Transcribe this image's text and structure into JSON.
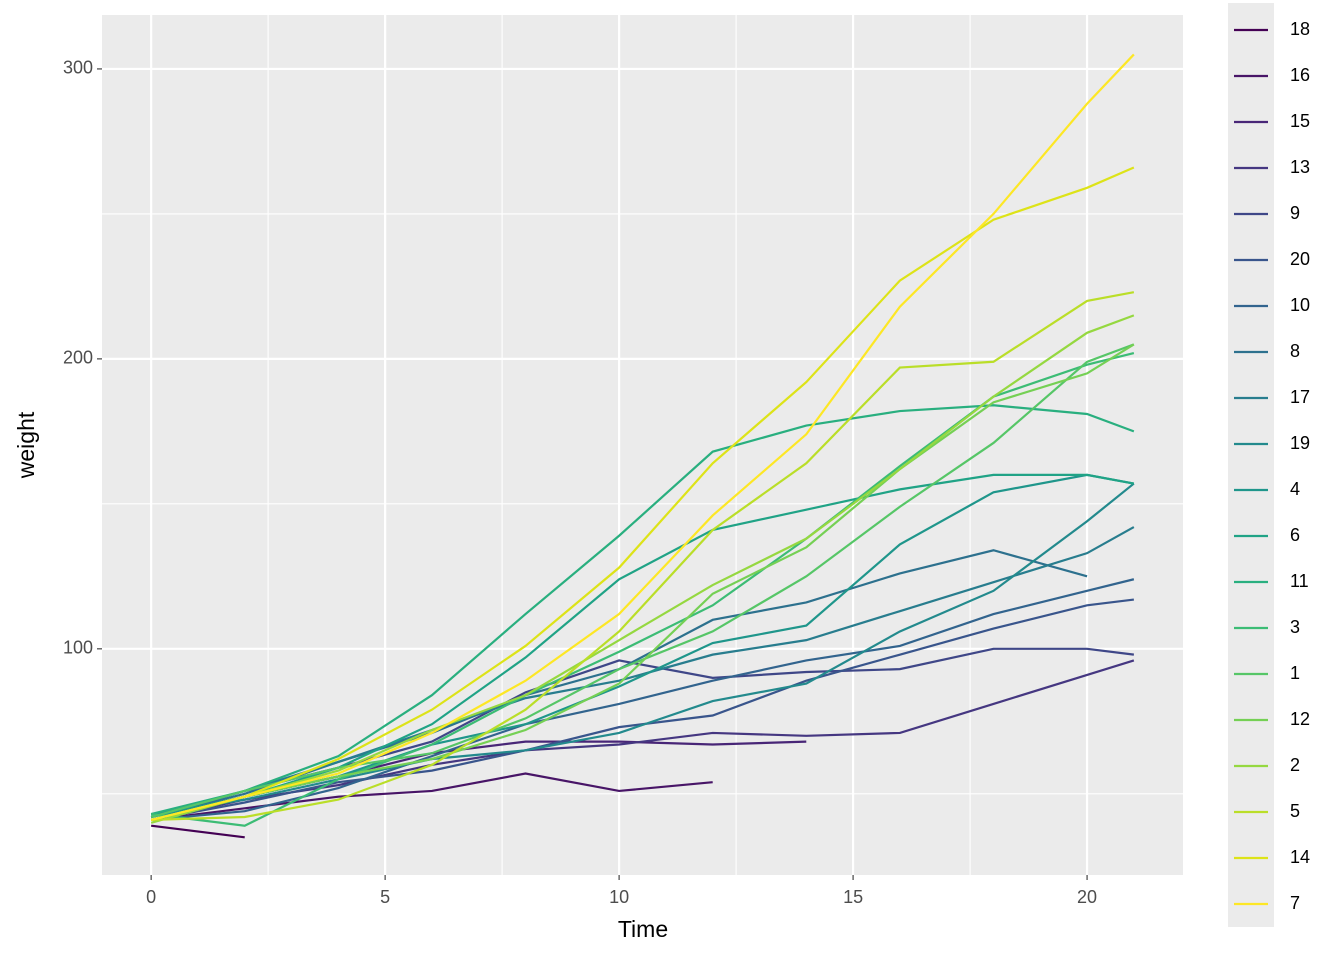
{
  "chart_data": {
    "type": "line",
    "x_label": "Time",
    "y_label": "weight",
    "xlim": [
      -1.05,
      22.05
    ],
    "ylim": [
      22,
      318.6
    ],
    "xticks": [
      0,
      5,
      10,
      15,
      20
    ],
    "yticks": [
      100,
      200,
      300
    ],
    "grid": true,
    "legend": "right",
    "series": [
      {
        "name": "18",
        "color": "#440154",
        "x": [
          0,
          2
        ],
        "values": [
          39,
          35
        ]
      },
      {
        "name": "16",
        "color": "#481567",
        "x": [
          0,
          2,
          4,
          6,
          8,
          10,
          12
        ],
        "values": [
          41,
          45,
          49,
          51,
          57,
          51,
          54
        ]
      },
      {
        "name": "15",
        "color": "#482677",
        "x": [
          0,
          2,
          4,
          6,
          8,
          10,
          12,
          14
        ],
        "values": [
          41,
          49,
          56,
          64,
          68,
          68,
          67,
          68
        ]
      },
      {
        "name": "13",
        "color": "#453781",
        "x": [
          0,
          2,
          4,
          6,
          8,
          10,
          12,
          14,
          16,
          18,
          20,
          21
        ],
        "values": [
          41,
          48,
          53,
          60,
          65,
          67,
          71,
          70,
          71,
          81,
          91,
          96
        ]
      },
      {
        "name": "9",
        "color": "#3F4788",
        "x": [
          0,
          2,
          4,
          6,
          8,
          10,
          12,
          14,
          16,
          18,
          20,
          21
        ],
        "values": [
          42,
          51,
          59,
          68,
          85,
          96,
          90,
          92,
          93,
          100,
          100,
          98
        ]
      },
      {
        "name": "20",
        "color": "#39558C",
        "x": [
          0,
          2,
          4,
          6,
          8,
          10,
          12,
          14,
          16,
          18,
          20,
          21
        ],
        "values": [
          41,
          47,
          54,
          58,
          65,
          73,
          77,
          89,
          98,
          107,
          115,
          117
        ]
      },
      {
        "name": "10",
        "color": "#32648E",
        "x": [
          0,
          2,
          4,
          6,
          8,
          10,
          12,
          14,
          16,
          18,
          20,
          21
        ],
        "values": [
          41,
          44,
          52,
          63,
          74,
          81,
          89,
          96,
          101,
          112,
          120,
          124
        ]
      },
      {
        "name": "8",
        "color": "#2D718E",
        "x": [
          0,
          2,
          4,
          6,
          8,
          10,
          12,
          14,
          16,
          18,
          20
        ],
        "values": [
          42,
          50,
          61,
          71,
          84,
          93,
          110,
          116,
          126,
          134,
          125
        ]
      },
      {
        "name": "17",
        "color": "#287D8E",
        "x": [
          0,
          2,
          4,
          6,
          8,
          10,
          12,
          14,
          16,
          18,
          20,
          21
        ],
        "values": [
          42,
          51,
          61,
          72,
          83,
          89,
          98,
          103,
          113,
          123,
          133,
          142
        ]
      },
      {
        "name": "19",
        "color": "#238A8D",
        "x": [
          0,
          2,
          4,
          6,
          8,
          10,
          12,
          14,
          16,
          18,
          20,
          21
        ],
        "values": [
          43,
          48,
          55,
          62,
          65,
          71,
          82,
          88,
          106,
          120,
          144,
          157
        ]
      },
      {
        "name": "4",
        "color": "#1F968B",
        "x": [
          0,
          2,
          4,
          6,
          8,
          10,
          12,
          14,
          16,
          18,
          20,
          21
        ],
        "values": [
          42,
          49,
          56,
          67,
          74,
          87,
          102,
          108,
          136,
          154,
          160,
          157
        ]
      },
      {
        "name": "6",
        "color": "#20A386",
        "x": [
          0,
          2,
          4,
          6,
          8,
          10,
          12,
          14,
          16,
          18,
          20,
          21
        ],
        "values": [
          41,
          49,
          59,
          74,
          97,
          124,
          141,
          148,
          155,
          160,
          160,
          157
        ]
      },
      {
        "name": "11",
        "color": "#29AF7F",
        "x": [
          0,
          2,
          4,
          6,
          8,
          10,
          12,
          14,
          16,
          18,
          20,
          21
        ],
        "values": [
          43,
          51,
          63,
          84,
          112,
          139,
          168,
          177,
          182,
          184,
          181,
          175
        ]
      },
      {
        "name": "3",
        "color": "#3CBC75",
        "x": [
          0,
          2,
          4,
          6,
          8,
          10,
          12,
          14,
          16,
          18,
          20,
          21
        ],
        "values": [
          43,
          39,
          55,
          67,
          84,
          99,
          115,
          138,
          163,
          187,
          198,
          202
        ]
      },
      {
        "name": "1",
        "color": "#56C667",
        "x": [
          0,
          2,
          4,
          6,
          8,
          10,
          12,
          14,
          16,
          18,
          20,
          21
        ],
        "values": [
          42,
          51,
          59,
          64,
          76,
          93,
          106,
          125,
          149,
          171,
          199,
          205
        ]
      },
      {
        "name": "12",
        "color": "#75D054",
        "x": [
          0,
          2,
          4,
          6,
          8,
          10,
          12,
          14,
          16,
          18,
          20,
          21
        ],
        "values": [
          41,
          49,
          56,
          62,
          72,
          88,
          119,
          135,
          162,
          185,
          195,
          205
        ]
      },
      {
        "name": "2",
        "color": "#95D840",
        "x": [
          0,
          2,
          4,
          6,
          8,
          10,
          12,
          14,
          16,
          18,
          20,
          21
        ],
        "values": [
          40,
          49,
          58,
          72,
          84,
          103,
          122,
          138,
          162,
          187,
          209,
          215
        ]
      },
      {
        "name": "5",
        "color": "#BADE28",
        "x": [
          0,
          2,
          4,
          6,
          8,
          10,
          12,
          14,
          16,
          18,
          20,
          21
        ],
        "values": [
          41,
          42,
          48,
          60,
          79,
          106,
          141,
          164,
          197,
          199,
          220,
          223
        ]
      },
      {
        "name": "14",
        "color": "#DDE318",
        "x": [
          0,
          2,
          4,
          6,
          8,
          10,
          12,
          14,
          16,
          18,
          20,
          21
        ],
        "values": [
          41,
          49,
          62,
          79,
          101,
          128,
          164,
          192,
          227,
          248,
          259,
          266
        ]
      },
      {
        "name": "7",
        "color": "#FDE725",
        "x": [
          0,
          2,
          4,
          6,
          8,
          10,
          12,
          14,
          16,
          18,
          20,
          21
        ],
        "values": [
          41,
          49,
          57,
          71,
          89,
          112,
          146,
          174,
          218,
          250,
          288,
          305
        ]
      }
    ]
  }
}
